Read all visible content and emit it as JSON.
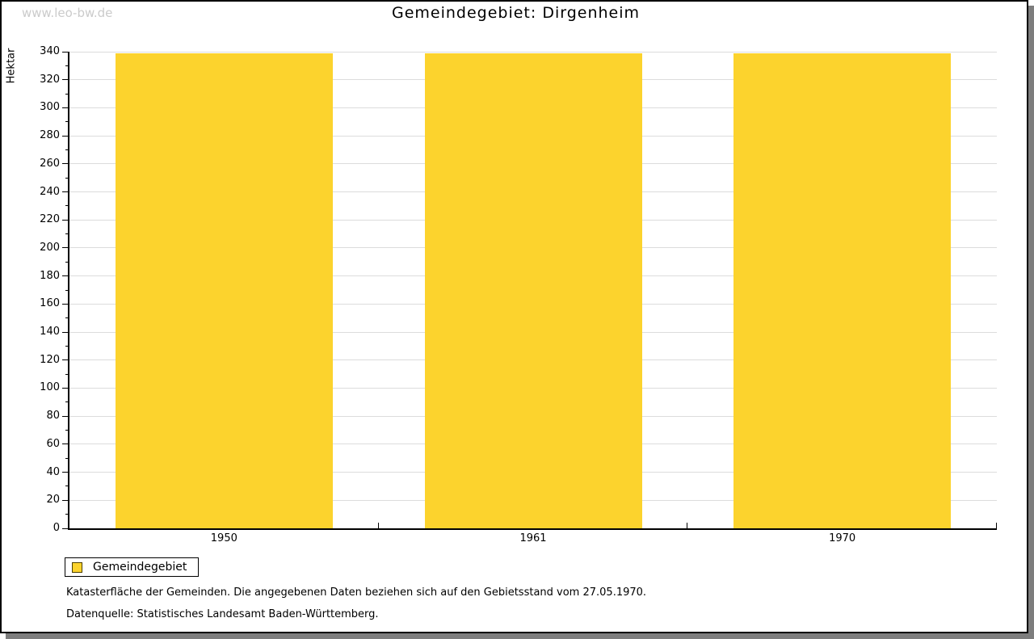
{
  "watermark": "www.leo-bw.de",
  "header": {
    "title": "Gemeindegebiet: Dirgenheim"
  },
  "chart_data": {
    "type": "bar",
    "title": "Gemeindegebiet: Dirgenheim",
    "categories": [
      "1950",
      "1961",
      "1970"
    ],
    "series": [
      {
        "name": "Gemeindegebiet",
        "values": [
          339,
          339,
          339
        ]
      }
    ],
    "xlabel": "",
    "ylabel": "Hektar",
    "ylim": [
      0,
      340
    ],
    "ytick_step": 20,
    "yminor_step": 10,
    "grid": true,
    "legend_position": "bottom-left",
    "legend_entries": [
      "Gemeindegebiet"
    ]
  },
  "legend": {
    "label": "Gemeindegebiet"
  },
  "footnotes": {
    "line1": "Katasterfläche der Gemeinden. Die angegebenen Daten beziehen sich auf den Gebietsstand vom 27.05.1970.",
    "line2": "Datenquelle: Statistisches Landesamt Baden-Württemberg."
  },
  "colors": {
    "bar": "#FCD32D",
    "grid": "#DCDCDC",
    "axis": "#000000",
    "watermark": "#CBCBCB",
    "frame_shadow": "#7D7D7D"
  }
}
